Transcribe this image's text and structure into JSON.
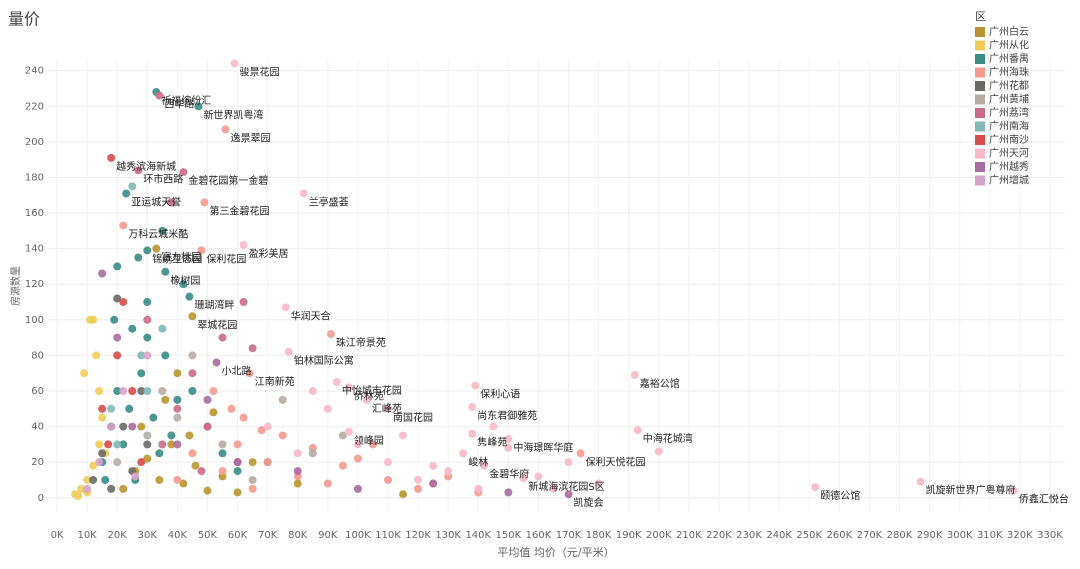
{
  "chart_data": {
    "type": "scatter",
    "title": "量价",
    "x_label": "平均值 均价（元/平米）",
    "y_label": "房源数量",
    "legend_title": "区",
    "legend_position": "top-right",
    "grid": true,
    "xlim": [
      -3000,
      335000
    ],
    "ylim": [
      -8,
      246
    ],
    "xticks": [
      {
        "value": 0,
        "label": "0K"
      },
      {
        "value": 10000,
        "label": "10K"
      },
      {
        "value": 20000,
        "label": "20K"
      },
      {
        "value": 30000,
        "label": "30K"
      },
      {
        "value": 40000,
        "label": "40K"
      },
      {
        "value": 50000,
        "label": "50K"
      },
      {
        "value": 60000,
        "label": "60K"
      },
      {
        "value": 70000,
        "label": "70K"
      },
      {
        "value": 80000,
        "label": "80K"
      },
      {
        "value": 90000,
        "label": "90K"
      },
      {
        "value": 100000,
        "label": "100K"
      },
      {
        "value": 110000,
        "label": "110K"
      },
      {
        "value": 120000,
        "label": "120K"
      },
      {
        "value": 130000,
        "label": "130K"
      },
      {
        "value": 140000,
        "label": "140K"
      },
      {
        "value": 150000,
        "label": "150K"
      },
      {
        "value": 160000,
        "label": "160K"
      },
      {
        "value": 170000,
        "label": "170K"
      },
      {
        "value": 180000,
        "label": "180K"
      },
      {
        "value": 190000,
        "label": "190K"
      },
      {
        "value": 200000,
        "label": "200K"
      },
      {
        "value": 210000,
        "label": "210K"
      },
      {
        "value": 220000,
        "label": "220K"
      },
      {
        "value": 230000,
        "label": "230K"
      },
      {
        "value": 240000,
        "label": "240K"
      },
      {
        "value": 250000,
        "label": "250K"
      },
      {
        "value": 260000,
        "label": "260K"
      },
      {
        "value": 270000,
        "label": "270K"
      },
      {
        "value": 280000,
        "label": "280K"
      },
      {
        "value": 290000,
        "label": "290K"
      },
      {
        "value": 300000,
        "label": "300K"
      },
      {
        "value": 310000,
        "label": "310K"
      },
      {
        "value": 320000,
        "label": "320K"
      },
      {
        "value": 330000,
        "label": "330K"
      }
    ],
    "yticks": [
      0,
      20,
      40,
      60,
      80,
      100,
      120,
      140,
      160,
      180,
      200,
      220,
      240
    ],
    "series": [
      {
        "name": "广州白云",
        "color": "#b8962e",
        "x": [
          22000,
          26000,
          30000,
          34000,
          38000,
          42000,
          46000,
          50000,
          55000,
          60000,
          28000,
          36000,
          44000,
          33000,
          45000,
          65000,
          80000,
          115000,
          40000,
          52000
        ],
        "values": [
          5,
          15,
          22,
          10,
          30,
          8,
          18,
          4,
          12,
          3,
          40,
          55,
          35,
          140,
          102,
          20,
          8,
          2,
          70,
          48
        ]
      },
      {
        "name": "广州从化",
        "color": "#f0cc5a",
        "x": [
          6000,
          8000,
          10000,
          12000,
          14000,
          15000,
          7000,
          9000,
          11000,
          13000,
          10000,
          12000,
          18000,
          16000,
          14000
        ],
        "values": [
          2,
          5,
          10,
          18,
          30,
          45,
          1,
          70,
          100,
          80,
          3,
          100,
          40,
          25,
          60
        ]
      },
      {
        "name": "广州番禺",
        "color": "#3a8c85",
        "x": [
          15000,
          18000,
          20000,
          22000,
          24000,
          26000,
          28000,
          30000,
          32000,
          34000,
          36000,
          38000,
          40000,
          16000,
          20000,
          25000,
          30000,
          35000,
          42000,
          45000,
          50000,
          55000,
          60000,
          70000,
          33000,
          47000,
          23000,
          30000,
          36000,
          44000,
          19000,
          27000
        ],
        "values": [
          20,
          40,
          60,
          30,
          50,
          10,
          70,
          90,
          45,
          25,
          80,
          35,
          55,
          10,
          130,
          95,
          110,
          150,
          120,
          60,
          40,
          25,
          15,
          20,
          228,
          220,
          171,
          139,
          127,
          113,
          100,
          135
        ]
      },
      {
        "name": "广州海珠",
        "color": "#f59a8e",
        "x": [
          40000,
          45000,
          50000,
          55000,
          60000,
          65000,
          70000,
          75000,
          80000,
          85000,
          90000,
          95000,
          100000,
          110000,
          120000,
          130000,
          52000,
          58000,
          62000,
          68000,
          56000,
          49000,
          22000,
          48000,
          91000,
          64000,
          174000,
          125000,
          105000,
          140000
        ],
        "values": [
          10,
          25,
          40,
          15,
          30,
          5,
          20,
          35,
          12,
          28,
          8,
          18,
          22,
          10,
          5,
          12,
          60,
          50,
          45,
          38,
          207,
          166,
          153,
          139,
          92,
          70,
          25,
          8,
          30,
          3
        ]
      },
      {
        "name": "广州花都",
        "color": "#6b6966",
        "x": [
          12000,
          15000,
          18000,
          22000,
          25000,
          20000,
          30000,
          28000
        ],
        "values": [
          10,
          25,
          5,
          40,
          15,
          112,
          30,
          60
        ]
      },
      {
        "name": "广州黄埔",
        "color": "#b5aca5",
        "x": [
          20000,
          30000,
          35000,
          40000,
          45000,
          55000,
          65000,
          85000,
          95000,
          75000
        ],
        "values": [
          20,
          35,
          60,
          45,
          80,
          30,
          10,
          25,
          35,
          55
        ]
      },
      {
        "name": "广州荔湾",
        "color": "#c96a8a",
        "x": [
          35000,
          40000,
          45000,
          50000,
          55000,
          60000,
          30000,
          38000,
          34000,
          27000,
          42000,
          65000,
          62000,
          48000
        ],
        "values": [
          30,
          50,
          70,
          40,
          90,
          20,
          100,
          166,
          226,
          184,
          183,
          84,
          110,
          15
        ]
      },
      {
        "name": "广州南海",
        "color": "#7fb8b5",
        "x": [
          20000,
          25000,
          30000,
          18000,
          28000,
          35000
        ],
        "values": [
          30,
          175,
          60,
          50,
          80,
          95
        ]
      },
      {
        "name": "广州南沙",
        "color": "#d64b4b",
        "x": [
          18000,
          15000,
          20000,
          22000,
          25000,
          17000,
          28000
        ],
        "values": [
          191,
          50,
          80,
          110,
          60,
          30,
          20
        ]
      },
      {
        "name": "广州天河",
        "color": "#f7b8c8",
        "x": [
          59000,
          82000,
          62000,
          76000,
          77000,
          93000,
          97000,
          103000,
          139000,
          192000,
          110000,
          138000,
          97000,
          193000,
          138000,
          150000,
          135000,
          142000,
          155000,
          252000,
          287000,
          318000,
          70000,
          80000,
          90000,
          100000,
          110000,
          120000,
          130000,
          140000,
          150000,
          160000,
          170000,
          180000,
          200000,
          115000,
          125000,
          85000,
          145000,
          165000
        ],
        "values": [
          244,
          171,
          142,
          107,
          82,
          65,
          62,
          55,
          63,
          69,
          50,
          51,
          37,
          38,
          36,
          33,
          25,
          18,
          11,
          6,
          9,
          4,
          40,
          25,
          50,
          30,
          20,
          10,
          15,
          5,
          28,
          12,
          20,
          8,
          26,
          35,
          18,
          60,
          40,
          5
        ]
      },
      {
        "name": "广州越秀",
        "color": "#a86c9e",
        "x": [
          53000,
          170000,
          15000,
          20000,
          25000,
          40000,
          50000,
          60000,
          80000,
          100000,
          125000,
          150000
        ],
        "values": [
          76,
          2,
          126,
          90,
          40,
          30,
          55,
          20,
          15,
          5,
          8,
          3
        ]
      },
      {
        "name": "广州增城",
        "color": "#d6a3c8",
        "x": [
          10000,
          14000,
          18000,
          22000,
          26000,
          30000
        ],
        "values": [
          5,
          20,
          40,
          60,
          12,
          80
        ]
      }
    ],
    "annotations": [
      {
        "text": "骏景花园",
        "x": 59000,
        "y": 244
      },
      {
        "text": "祈福缤纷汇",
        "x": 33000,
        "y": 228
      },
      {
        "text": "西华路",
        "x": 34000,
        "y": 226
      },
      {
        "text": "新世界凯粤湾",
        "x": 47000,
        "y": 220
      },
      {
        "text": "逸景翠园",
        "x": 56000,
        "y": 207
      },
      {
        "text": "越秀滨海新城",
        "x": 18000,
        "y": 191
      },
      {
        "text": "环市西路",
        "x": 27000,
        "y": 184
      },
      {
        "text": "金碧花园第一金碧",
        "x": 42000,
        "y": 183
      },
      {
        "text": "亚运城天誉",
        "x": 23000,
        "y": 171
      },
      {
        "text": "兰亭盛荟",
        "x": 82000,
        "y": 171
      },
      {
        "text": "第三金碧花园",
        "x": 49000,
        "y": 166
      },
      {
        "text": "万科云城米酷",
        "x": 22000,
        "y": 153
      },
      {
        "text": "富力桃园",
        "x": 33000,
        "y": 140
      },
      {
        "text": "锦绣生态园",
        "x": 30000,
        "y": 139
      },
      {
        "text": "保利花园",
        "x": 48000,
        "y": 139
      },
      {
        "text": "盈彩美居",
        "x": 62000,
        "y": 142
      },
      {
        "text": "橡树园",
        "x": 36000,
        "y": 127
      },
      {
        "text": "珊瑚湾畔",
        "x": 44000,
        "y": 113
      },
      {
        "text": "华润天合",
        "x": 76000,
        "y": 107
      },
      {
        "text": "珠江帝景苑",
        "x": 91000,
        "y": 92
      },
      {
        "text": "翠城花园",
        "x": 45000,
        "y": 102
      },
      {
        "text": "铂林国际公寓",
        "x": 77000,
        "y": 82
      },
      {
        "text": "小北路",
        "x": 53000,
        "y": 76
      },
      {
        "text": "江南新苑",
        "x": 64000,
        "y": 70
      },
      {
        "text": "中怡城市花园",
        "x": 93000,
        "y": 65
      },
      {
        "text": "侨林苑",
        "x": 97000,
        "y": 62
      },
      {
        "text": "汇峰苑",
        "x": 103000,
        "y": 55
      },
      {
        "text": "保利心语",
        "x": 139000,
        "y": 63
      },
      {
        "text": "嘉裕公馆",
        "x": 192000,
        "y": 69
      },
      {
        "text": "南国花园",
        "x": 110000,
        "y": 50
      },
      {
        "text": "尚东君御雅苑",
        "x": 138000,
        "y": 51
      },
      {
        "text": "领峰园",
        "x": 97000,
        "y": 37
      },
      {
        "text": "中海花城湾",
        "x": 193000,
        "y": 38
      },
      {
        "text": "隽峰苑",
        "x": 138000,
        "y": 36
      },
      {
        "text": "中海璟晖华庭",
        "x": 150000,
        "y": 33
      },
      {
        "text": "峻林",
        "x": 135000,
        "y": 25
      },
      {
        "text": "保利天悦花园",
        "x": 174000,
        "y": 25
      },
      {
        "text": "金碧华府",
        "x": 142000,
        "y": 18
      },
      {
        "text": "新城海滨花园S区",
        "x": 155000,
        "y": 11
      },
      {
        "text": "凯旋会",
        "x": 170000,
        "y": 2
      },
      {
        "text": "颐德公馆",
        "x": 252000,
        "y": 6
      },
      {
        "text": "凯旋新世界广粤尊府",
        "x": 287000,
        "y": 9
      },
      {
        "text": "侨鑫汇悦台",
        "x": 318000,
        "y": 4
      }
    ]
  }
}
